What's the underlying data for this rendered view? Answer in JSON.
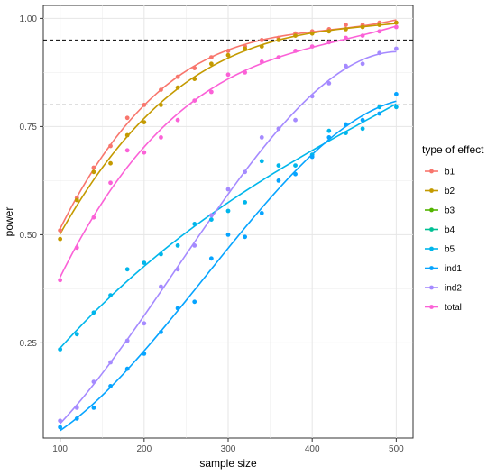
{
  "chart_data": {
    "type": "scatter",
    "xlabel": "sample size",
    "ylabel": "power",
    "xlim": [
      80,
      520
    ],
    "ylim": [
      0.03,
      1.03
    ],
    "x_ticks": [
      100,
      200,
      300,
      400,
      500
    ],
    "x_tick_labels": [
      "100",
      "200",
      "300",
      "400",
      "500"
    ],
    "y_ticks": [
      0.25,
      0.5,
      0.75,
      1.0
    ],
    "y_tick_labels": [
      "0.25",
      "0.50",
      "0.75",
      "1.00"
    ],
    "grid": true,
    "reference_lines": [
      0.8,
      0.95
    ],
    "legend": {
      "title": "type of effect",
      "position": "right"
    },
    "x": [
      100,
      120,
      140,
      160,
      180,
      200,
      220,
      240,
      260,
      280,
      300,
      320,
      340,
      360,
      380,
      400,
      420,
      440,
      460,
      480,
      500
    ],
    "series": [
      {
        "name": "b1",
        "color": "#F8766D",
        "values": [
          0.51,
          0.585,
          0.655,
          0.705,
          0.77,
          0.8,
          0.835,
          0.865,
          0.885,
          0.91,
          0.925,
          0.935,
          0.95,
          0.955,
          0.965,
          0.97,
          0.975,
          0.985,
          0.985,
          0.99,
          0.99
        ]
      },
      {
        "name": "b2",
        "color": "#C49A00",
        "values": [
          0.49,
          0.58,
          0.645,
          0.665,
          0.73,
          0.76,
          0.8,
          0.84,
          0.86,
          0.895,
          0.915,
          0.93,
          0.935,
          0.95,
          0.96,
          0.965,
          0.97,
          0.975,
          0.98,
          0.985,
          0.99
        ]
      },
      {
        "name": "b3",
        "color": "#53B400",
        "values": []
      },
      {
        "name": "b4",
        "color": "#00C094",
        "values": []
      },
      {
        "name": "b5",
        "color": "#00B6EB",
        "values": [
          0.235,
          0.27,
          0.32,
          0.36,
          0.42,
          0.435,
          0.455,
          0.475,
          0.525,
          0.535,
          0.555,
          0.575,
          0.67,
          0.66,
          0.66,
          0.685,
          0.74,
          0.735,
          0.745,
          0.795,
          0.795
        ]
      },
      {
        "name": "ind1",
        "color": "#06A4FF",
        "values": [
          0.055,
          0.075,
          0.1,
          0.15,
          0.19,
          0.225,
          0.275,
          0.33,
          0.345,
          0.445,
          0.5,
          0.495,
          0.55,
          0.625,
          0.64,
          0.68,
          0.725,
          0.755,
          0.765,
          0.78,
          0.825
        ]
      },
      {
        "name": "ind2",
        "color": "#A58AFF",
        "values": [
          0.07,
          0.1,
          0.16,
          0.205,
          0.255,
          0.295,
          0.38,
          0.42,
          0.475,
          0.545,
          0.605,
          0.645,
          0.725,
          0.745,
          0.765,
          0.82,
          0.85,
          0.89,
          0.895,
          0.92,
          0.93
        ]
      },
      {
        "name": "total",
        "color": "#FB61D7",
        "values": [
          0.395,
          0.47,
          0.54,
          0.62,
          0.695,
          0.69,
          0.725,
          0.765,
          0.81,
          0.83,
          0.87,
          0.875,
          0.9,
          0.91,
          0.925,
          0.935,
          0.945,
          0.955,
          0.96,
          0.97,
          0.98
        ]
      }
    ]
  }
}
